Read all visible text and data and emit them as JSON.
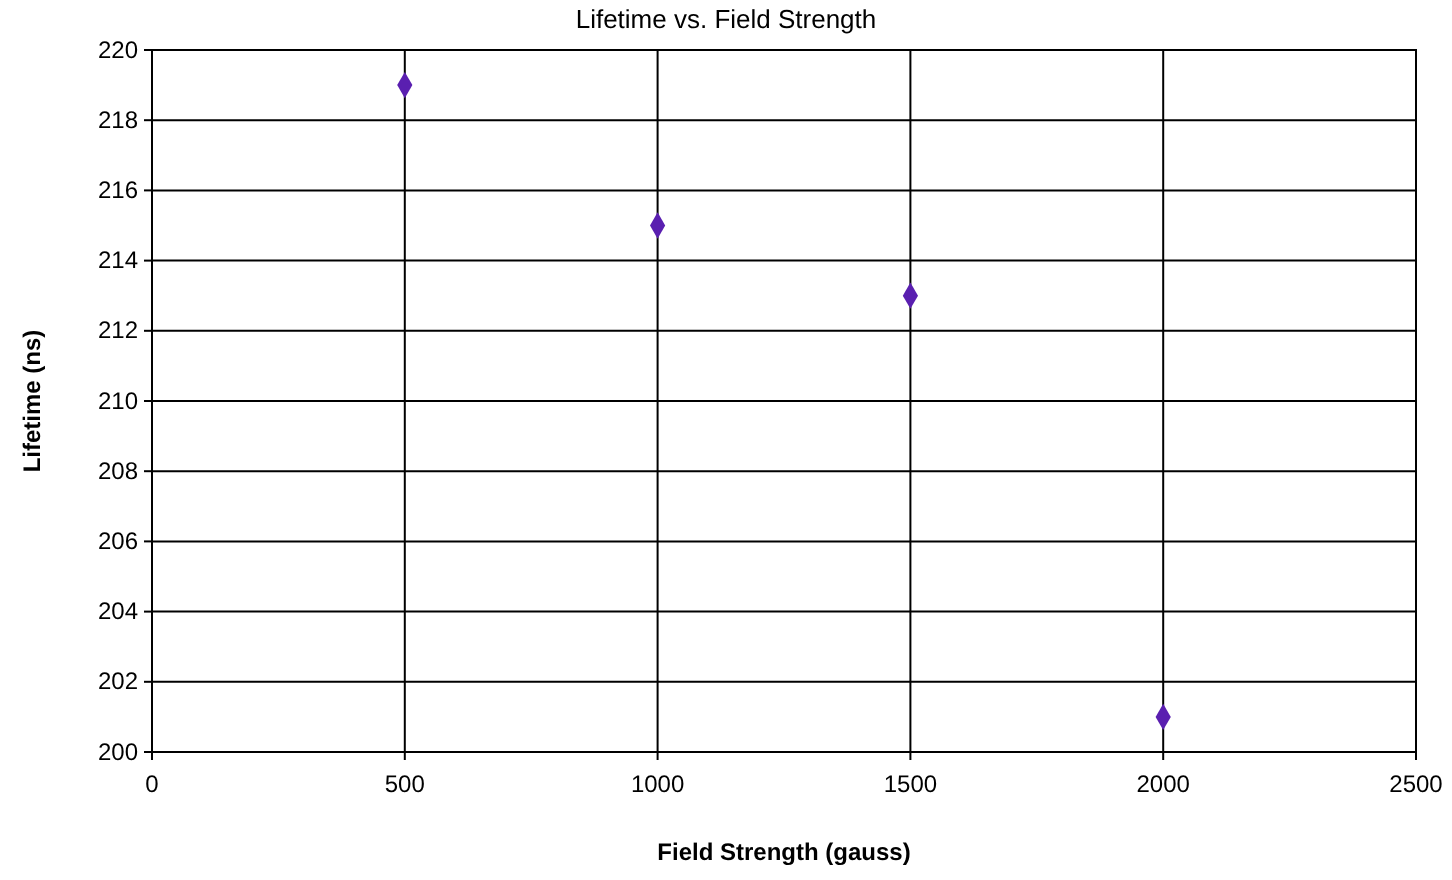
{
  "chart_data": {
    "type": "scatter",
    "title": "Lifetime vs. Field Strength",
    "xlabel": "Field Strength (gauss)",
    "ylabel": "Lifetime (ns)",
    "x": [
      500,
      1000,
      1500,
      2000
    ],
    "values": [
      219,
      215,
      213,
      201
    ],
    "color": "#5a1fb0",
    "marker": "diamond",
    "xlim": [
      0,
      2500
    ],
    "xticks": [
      0,
      500,
      1000,
      1500,
      2000,
      2500
    ],
    "ylim": [
      200,
      220
    ],
    "yticks": [
      200,
      202,
      204,
      206,
      208,
      210,
      212,
      214,
      216,
      218,
      220
    ],
    "grid": true
  }
}
